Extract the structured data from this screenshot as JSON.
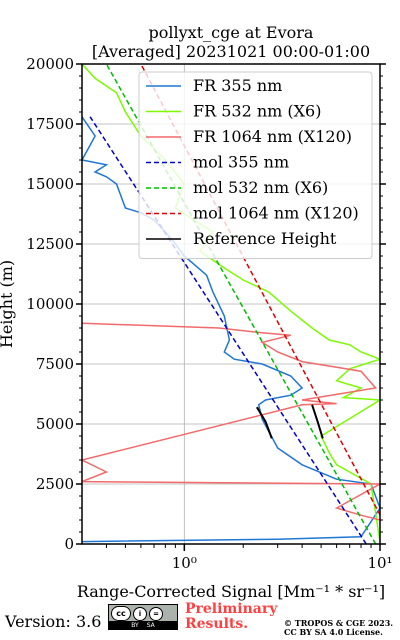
{
  "chart_data": {
    "type": "line",
    "title": "pollyxt_cge at Evora",
    "subtitle": "[Averaged] 20231021 00:00-01:00",
    "xlabel": "Range-Corrected Signal [Mm⁻¹ * sr⁻¹]",
    "ylabel": "Height (m)",
    "xscale": "log",
    "xlim": [
      0.3,
      10
    ],
    "ylim": [
      0,
      20000
    ],
    "xticks": [
      {
        "value": 1,
        "label": "10⁰"
      },
      {
        "value": 10,
        "label": "10¹"
      }
    ],
    "yticks": [
      0,
      2500,
      5000,
      7500,
      10000,
      12500,
      15000,
      17500,
      20000
    ],
    "ytick_labels": [
      "0",
      "2500",
      "5000",
      "7500",
      "10000",
      "12500",
      "15000",
      "17500",
      "20000"
    ],
    "grid": true,
    "legend_position": "upper-right",
    "series": [
      {
        "name": "FR 355 nm",
        "color": "#1f77d4",
        "style": "solid",
        "x": [
          0.3,
          3,
          8,
          10,
          9,
          6,
          4,
          3,
          2.5,
          2.4,
          2.6,
          3.5,
          4,
          3.5,
          2.5,
          1.8,
          1.6,
          1.7,
          1.6,
          1.4,
          1.3,
          1.0,
          0.9,
          0.8,
          0.7,
          0.6,
          0.5,
          0.45,
          0.4,
          0.35,
          0.4,
          0.3,
          0.35,
          0.3
        ],
        "y": [
          100,
          200,
          300,
          1500,
          2500,
          2700,
          3300,
          4000,
          5200,
          5800,
          6000,
          6200,
          6500,
          7000,
          7500,
          7700,
          8000,
          8500,
          9500,
          10500,
          11200,
          12000,
          12500,
          13000,
          13500,
          13800,
          14000,
          15000,
          15300,
          15500,
          15800,
          16000,
          17000,
          17800
        ]
      },
      {
        "name": "FR 532 nm (X6)",
        "color": "#7cfc00",
        "style": "solid",
        "x": [
          10,
          9,
          7,
          6,
          5.5,
          5,
          10,
          6.5,
          8,
          6,
          7,
          10,
          8,
          7,
          5.5,
          4.5,
          3.5,
          2.7,
          2,
          1.6,
          1.2,
          1.4,
          0.9,
          1,
          0.8,
          0.6,
          0.5,
          0.45,
          0.35,
          0.3
        ],
        "y": [
          100,
          2500,
          3000,
          3300,
          3800,
          4500,
          6000,
          6100,
          6500,
          6800,
          7300,
          7700,
          8000,
          8300,
          8500,
          9000,
          9700,
          10500,
          11000,
          11500,
          12200,
          13000,
          14000,
          15000,
          16000,
          17000,
          18000,
          18800,
          19400,
          20000
        ]
      },
      {
        "name": "FR 1064 nm (X120)",
        "color": "#f26a6a",
        "style": "solid",
        "x": [
          10,
          8,
          6,
          10,
          0.3,
          0.4,
          0.3,
          4,
          6,
          4,
          9.5,
          8,
          4,
          3,
          2.5,
          3.5,
          2.5,
          1.5,
          0.3
        ],
        "y": [
          1000,
          1200,
          1500,
          2500,
          2600,
          3000,
          3500,
          5800,
          5850,
          6000,
          6500,
          7200,
          7600,
          8000,
          8400,
          8700,
          8800,
          9000,
          9200
        ]
      },
      {
        "name": "mol 355 nm",
        "color": "#0000cc",
        "style": "dashed",
        "x": [
          8.5,
          0.33
        ],
        "y": [
          0,
          17800
        ]
      },
      {
        "name": "mol 532 nm (X6)",
        "color": "#00bb00",
        "style": "dashed",
        "x": [
          9.5,
          0.4
        ],
        "y": [
          0,
          20000
        ]
      },
      {
        "name": "mol 1064 nm (X120)",
        "color": "#dd0000",
        "style": "dashed",
        "x": [
          12,
          0.6
        ],
        "y": [
          0,
          20000
        ]
      },
      {
        "name": "Reference Height",
        "color": "#000000",
        "style": "solid",
        "segments": [
          {
            "x": [
              2.35,
              2.6,
              2.8
            ],
            "y": [
              5700,
              5100,
              4400
            ]
          },
          {
            "x": [
              4.5,
              4.8,
              5.1
            ],
            "y": [
              5800,
              5100,
              4400
            ]
          }
        ]
      }
    ]
  },
  "footer": {
    "version": "Version: 3.6",
    "license_badge_top": [
      "cc",
      "i",
      "="
    ],
    "license_badge_bottom": [
      "BY",
      "SA"
    ],
    "preliminary_line1": "Preliminary",
    "preliminary_line2": "Results.",
    "copyright_line1": "© TROPOS & CGE 2023.",
    "copyright_line2": "CC BY SA 4.0 License."
  }
}
